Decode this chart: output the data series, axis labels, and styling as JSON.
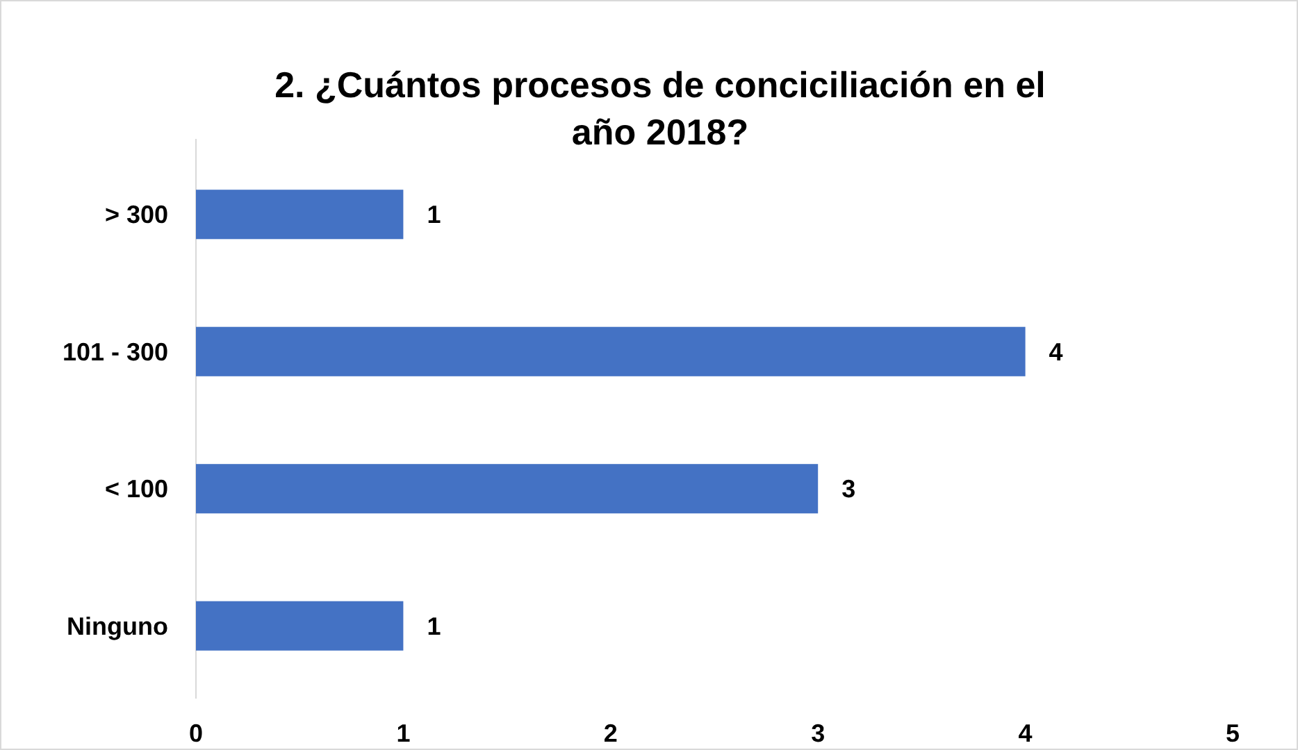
{
  "chart_data": {
    "type": "bar",
    "orientation": "horizontal",
    "title": "2. ¿Cuántos procesos de conciciliación en el año 2018?",
    "categories": [
      "> 300",
      "101 - 300",
      "< 100",
      "Ninguno"
    ],
    "values": [
      1,
      4,
      3,
      1
    ],
    "color": "#4472c4",
    "xlim": [
      0,
      5
    ],
    "xticks": [
      0,
      1,
      2,
      3,
      4,
      5
    ],
    "data_labels": true,
    "grid": false
  }
}
